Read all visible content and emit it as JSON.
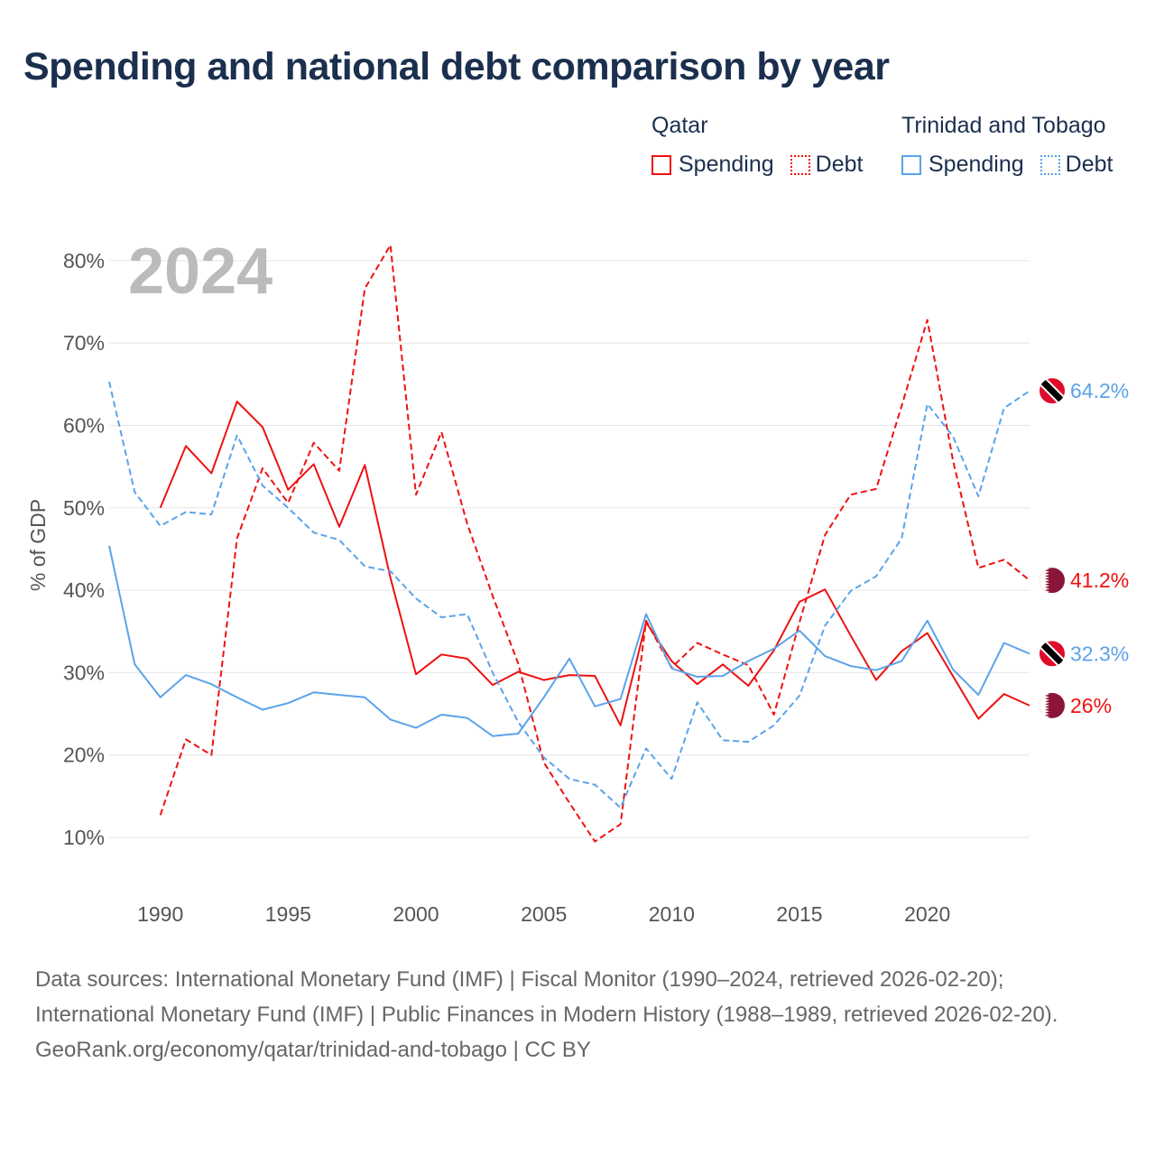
{
  "title": "Spending and national debt comparison by year",
  "legend": {
    "groups": [
      {
        "name": "Qatar",
        "items": [
          {
            "label": "Spending",
            "style": "solid"
          },
          {
            "label": "Debt",
            "style": "dotted"
          }
        ],
        "color": "#ee1111"
      },
      {
        "name": "Trinidad and Tobago",
        "items": [
          {
            "label": "Spending",
            "style": "solid"
          },
          {
            "label": "Debt",
            "style": "dotted"
          }
        ],
        "color": "#5ba3ea"
      }
    ]
  },
  "year_label": "2024",
  "footer": {
    "sources": "Data sources: International Monetary Fund (IMF) | Fiscal Monitor (1990–2024, retrieved 2026-02-20); International Monetary Fund (IMF) | Public Finances in Modern History (1988–1989, retrieved 2026-02-20).",
    "credit": "GeoRank.org/economy/qatar/trinidad-and-tobago | CC BY"
  },
  "chart_data": {
    "type": "line",
    "title": "Spending and national debt comparison by year",
    "xlabel": "",
    "ylabel": "% of GDP",
    "xlim": [
      1988,
      2024
    ],
    "ylim": [
      0,
      85
    ],
    "xticks": [
      1990,
      1995,
      2000,
      2005,
      2010,
      2015,
      2020
    ],
    "yticks": [
      10,
      20,
      30,
      40,
      50,
      60,
      70,
      80
    ],
    "ytick_labels": [
      "10%",
      "20%",
      "30%",
      "40%",
      "50%",
      "60%",
      "70%",
      "80%"
    ],
    "grid": true,
    "legend_position": "top-right",
    "series": [
      {
        "name": "Qatar Spending",
        "country": "qatar",
        "color": "#ee1111",
        "dash": false,
        "start": 1990,
        "end_label": "26%",
        "values": [
          50.0,
          57.5,
          54.2,
          62.9,
          59.8,
          52.2,
          55.3,
          47.7,
          55.2,
          41.5,
          29.8,
          32.2,
          31.7,
          28.5,
          30.1,
          29.1,
          29.7,
          29.6,
          23.6,
          36.1,
          31.4,
          28.6,
          31.0,
          28.4,
          32.7,
          38.6,
          40.1,
          34.5,
          29.1,
          32.6,
          34.8,
          29.6,
          24.4,
          27.4,
          26.0
        ]
      },
      {
        "name": "Qatar Debt",
        "country": "qatar",
        "color": "#ee1111",
        "dash": true,
        "start": 1990,
        "end_label": "41.2%",
        "values": [
          12.7,
          21.9,
          20.0,
          46.3,
          54.8,
          50.6,
          57.9,
          54.5,
          76.6,
          81.9,
          51.6,
          59.2,
          48.1,
          39.3,
          31.1,
          19.1,
          14.2,
          9.5,
          11.6,
          36.3,
          30.6,
          33.6,
          32.2,
          30.9,
          24.9,
          36.1,
          46.7,
          51.6,
          52.3,
          62.4,
          72.8,
          55.8,
          42.7,
          43.7,
          41.2
        ]
      },
      {
        "name": "Trinidad and Tobago Spending",
        "country": "tt",
        "color": "#5ba3ea",
        "dash": false,
        "start": 1988,
        "end_label": "32.3%",
        "values": [
          45.4,
          31.0,
          27.0,
          29.7,
          28.6,
          27.0,
          25.5,
          26.3,
          27.6,
          27.3,
          27.0,
          24.3,
          23.3,
          24.9,
          24.5,
          22.3,
          22.6,
          27.0,
          31.7,
          25.9,
          26.8,
          37.1,
          30.5,
          29.5,
          29.6,
          31.4,
          32.9,
          35.1,
          32.0,
          30.8,
          30.3,
          31.4,
          36.3,
          30.4,
          27.3,
          33.6,
          32.3
        ]
      },
      {
        "name": "Trinidad and Tobago Debt",
        "country": "tt",
        "color": "#5ba3ea",
        "dash": true,
        "start": 1988,
        "end_label": "64.2%",
        "values": [
          65.3,
          51.9,
          47.8,
          49.5,
          49.2,
          58.8,
          52.7,
          50.0,
          47.0,
          46.1,
          42.9,
          42.3,
          39.0,
          36.7,
          37.1,
          30.0,
          24.0,
          19.7,
          17.1,
          16.4,
          13.6,
          20.8,
          17.1,
          26.4,
          21.8,
          21.6,
          23.6,
          27.2,
          35.7,
          39.9,
          41.7,
          46.3,
          62.6,
          58.7,
          51.4,
          62.1,
          64.2
        ]
      }
    ]
  }
}
